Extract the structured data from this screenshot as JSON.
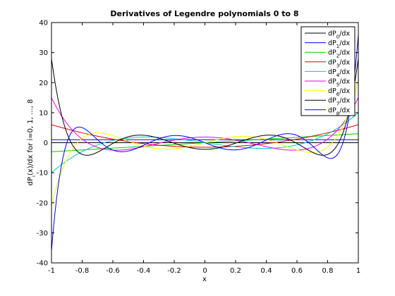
{
  "chart_data": {
    "type": "line",
    "title": "Derivatives of Legendre polynomials 0 to 8",
    "xlabel": "x",
    "ylabel": {
      "p1": "dP",
      "sub": "i",
      "p2": "(x)/dx for i=0, 1, ..., 8"
    },
    "xlim": [
      -1,
      1
    ],
    "ylim": [
      -40,
      40
    ],
    "xticks": [
      -1,
      -0.8,
      -0.6,
      -0.4,
      -0.2,
      0,
      0.2,
      0.4,
      0.6,
      0.8,
      1
    ],
    "xtick_labels": [
      "-1",
      "-0.8",
      "-0.6",
      "-0.4",
      "-0.2",
      "0",
      "0.2",
      "0.4",
      "0.6",
      "0.8",
      "1"
    ],
    "yticks": [
      -40,
      -30,
      -20,
      -10,
      0,
      10,
      20,
      30,
      40
    ],
    "ytick_labels": [
      "-40",
      "-30",
      "-20",
      "-10",
      "0",
      "10",
      "20",
      "30",
      "40"
    ],
    "grid": false,
    "legend_position": "top-right",
    "series": [
      {
        "name": "dP0/dx",
        "label_main": "dP",
        "label_sub": "0",
        "label_tail": "/dx",
        "color": "#000000",
        "degree": 0
      },
      {
        "name": "dP1/dx",
        "label_main": "dP",
        "label_sub": "1",
        "label_tail": "/dx",
        "color": "#0000ff",
        "degree": 1
      },
      {
        "name": "dP2/dx",
        "label_main": "dP",
        "label_sub": "2",
        "label_tail": "/dx",
        "color": "#00cc00",
        "degree": 2
      },
      {
        "name": "dP3/dx",
        "label_main": "dP",
        "label_sub": "3",
        "label_tail": "/dx",
        "color": "#dd0000",
        "degree": 3
      },
      {
        "name": "dP4/dx",
        "label_main": "dP",
        "label_sub": "4",
        "label_tail": "/dx",
        "color": "#00cccc",
        "degree": 4
      },
      {
        "name": "dP5/dx",
        "label_main": "dP",
        "label_sub": "5",
        "label_tail": "/dx",
        "color": "#ee00ee",
        "degree": 5
      },
      {
        "name": "dP6/dx",
        "label_main": "dP",
        "label_sub": "6",
        "label_tail": "/dx",
        "color": "#ffff00",
        "degree": 6
      },
      {
        "name": "dP7/dx",
        "label_main": "dP",
        "label_sub": "7",
        "label_tail": "/dx",
        "color": "#000000",
        "degree": 7
      },
      {
        "name": "dP8/dx",
        "label_main": "dP",
        "label_sub": "8",
        "label_tail": "/dx",
        "color": "#0000ff",
        "degree": 8
      }
    ]
  }
}
